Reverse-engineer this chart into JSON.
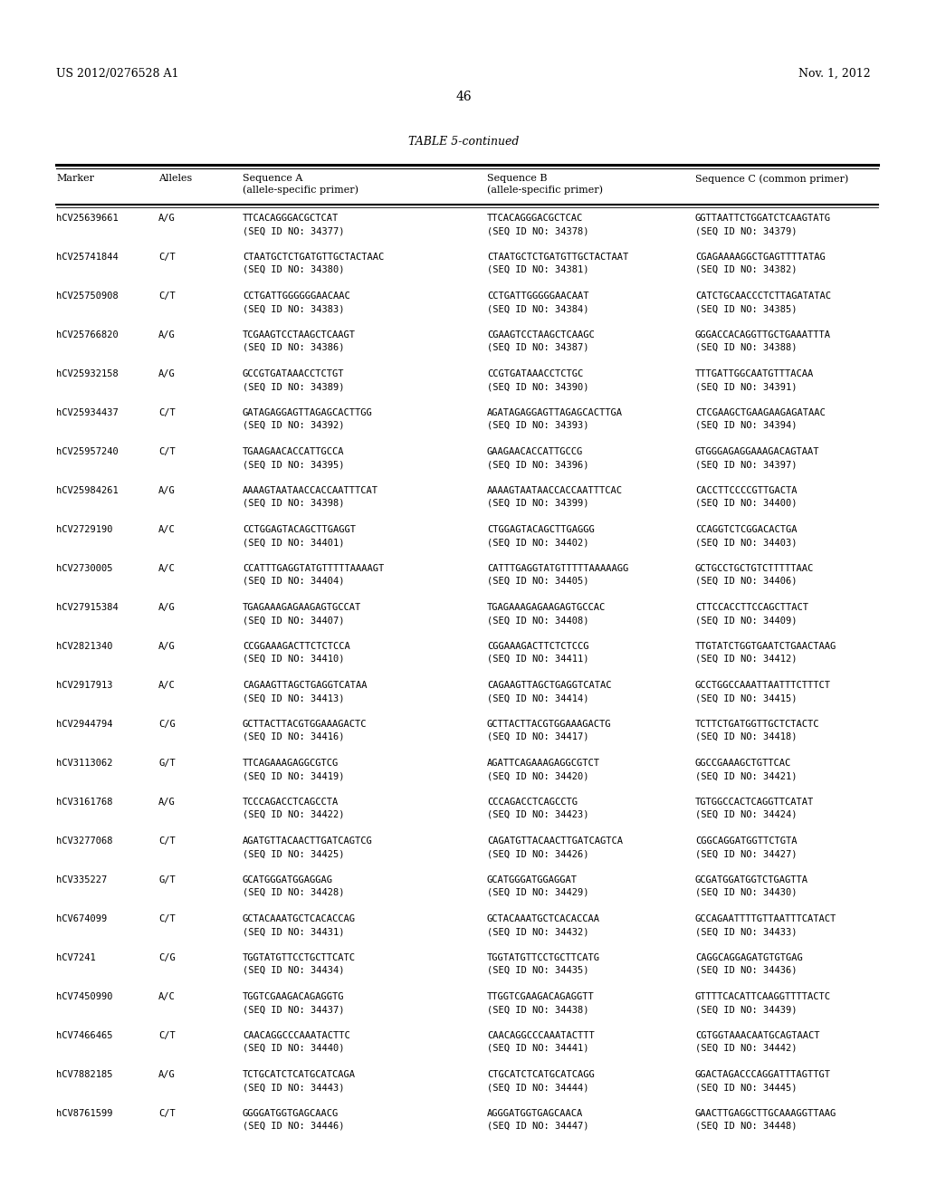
{
  "header_left": "US 2012/0276528 A1",
  "header_right": "Nov. 1, 2012",
  "page_number": "46",
  "table_title": "TABLE 5-continued",
  "rows": [
    [
      "hCV25639661",
      "A/G",
      "TTCACAGGGACGCTCAT",
      "(SEQ ID NO: 34377)",
      "TTCACAGGGACGCTCAC",
      "(SEQ ID NO: 34378)",
      "GGTTAATTCTGGATCTCAAGTATG",
      "(SEQ ID NO: 34379)"
    ],
    [
      "hCV25741844",
      "C/T",
      "CTAATGCTCTGATGTTGCTACTAAC",
      "(SEQ ID NO: 34380)",
      "CTAATGCTCTGATGTTGCTACTAAT",
      "(SEQ ID NO: 34381)",
      "CGAGAAAAGGCTGAGTTTTATAG",
      "(SEQ ID NO: 34382)"
    ],
    [
      "hCV25750908",
      "C/T",
      "CCTGATTGGGGGGAACAAC",
      "(SEQ ID NO: 34383)",
      "CCTGATTGGGGGAACAAT",
      "(SEQ ID NO: 34384)",
      "CATCTGCAACCCTCTTAGATATAC",
      "(SEQ ID NO: 34385)"
    ],
    [
      "hCV25766820",
      "A/G",
      "TCGAAGTCCTAAGCTCAAGT",
      "(SEQ ID NO: 34386)",
      "CGAAGTCCTAAGCTCAAGC",
      "(SEQ ID NO: 34387)",
      "GGGACCACAGGTTGCTGAAATTTA",
      "(SEQ ID NO: 34388)"
    ],
    [
      "hCV25932158",
      "A/G",
      "GCCGTGATAAACCTCTGT",
      "(SEQ ID NO: 34389)",
      "CCGTGATAAACCTCTGC",
      "(SEQ ID NO: 34390)",
      "TTTGATTGGCAATGTTTACAA",
      "(SEQ ID NO: 34391)"
    ],
    [
      "hCV25934437",
      "C/T",
      "GATAGAGGAGTTAGAGCACTTGG",
      "(SEQ ID NO: 34392)",
      "AGATAGAGGAGTTAGAGCACTTGA",
      "(SEQ ID NO: 34393)",
      "CTCGAAGCTGAAGAAGAGATAAC",
      "(SEQ ID NO: 34394)"
    ],
    [
      "hCV25957240",
      "C/T",
      "TGAAGAACACCATTGCCA",
      "(SEQ ID NO: 34395)",
      "GAAGAACACCATTGCCG",
      "(SEQ ID NO: 34396)",
      "GTGGGAGAGGAAAGACAGTAAT",
      "(SEQ ID NO: 34397)"
    ],
    [
      "hCV25984261",
      "A/G",
      "AAAAGTAATAACCACCAATTTCAT",
      "(SEQ ID NO: 34398)",
      "AAAAGTAATAACCACCAATTTCAC",
      "(SEQ ID NO: 34399)",
      "CACCTTCCCCGTTGACTA",
      "(SEQ ID NO: 34400)"
    ],
    [
      "hCV2729190",
      "A/C",
      "CCTGGAGTACAGCTTGAGGT",
      "(SEQ ID NO: 34401)",
      "CTGGAGTACAGCTTGAGGG",
      "(SEQ ID NO: 34402)",
      "CCAGGTCTCGGACACTGA",
      "(SEQ ID NO: 34403)"
    ],
    [
      "hCV2730005",
      "A/C",
      "CCATTTGAGGTATGTTTTTAAAAGT",
      "(SEQ ID NO: 34404)",
      "CATTTGAGGTATGTTTTTAAAAAGG",
      "(SEQ ID NO: 34405)",
      "GCTGCCTGCTGTCTTTTTAAC",
      "(SEQ ID NO: 34406)"
    ],
    [
      "hCV27915384",
      "A/G",
      "TGAGAAAGAGAAGAGTGCCAT",
      "(SEQ ID NO: 34407)",
      "TGAGAAAGAGAAGAGTGCCAC",
      "(SEQ ID NO: 34408)",
      "CTTCCACCTTCCAGCTTACT",
      "(SEQ ID NO: 34409)"
    ],
    [
      "hCV2821340",
      "A/G",
      "CCGGAAAGACTTCTCTCCA",
      "(SEQ ID NO: 34410)",
      "CGGAAAGACTTCTCTCCG",
      "(SEQ ID NO: 34411)",
      "TTGTATCTGGTGAATCTGAACTAAG",
      "(SEQ ID NO: 34412)"
    ],
    [
      "hCV2917913",
      "A/C",
      "CAGAAGTTAGCTGAGGTCATAA",
      "(SEQ ID NO: 34413)",
      "CAGAAGTTAGCTGAGGTCATAC",
      "(SEQ ID NO: 34414)",
      "GCCTGGCCAAATTAATTTCTTTCT",
      "(SEQ ID NO: 34415)"
    ],
    [
      "hCV2944794",
      "C/G",
      "GCTTACTTACGTGGAAAGACTC",
      "(SEQ ID NO: 34416)",
      "GCTTACTTACGTGGAAAGACTG",
      "(SEQ ID NO: 34417)",
      "TCTTCTGATGGTTGCTCTACTC",
      "(SEQ ID NO: 34418)"
    ],
    [
      "hCV3113062",
      "G/T",
      "TTCAGAAAGAGGCGTCG",
      "(SEQ ID NO: 34419)",
      "AGATTCAGAAAGAGGCGTCT",
      "(SEQ ID NO: 34420)",
      "GGCCGAAAGCTGTTCAC",
      "(SEQ ID NO: 34421)"
    ],
    [
      "hCV3161768",
      "A/G",
      "TCCCAGACCTCAGCCTA",
      "(SEQ ID NO: 34422)",
      "CCCAGACCTCAGCCTG",
      "(SEQ ID NO: 34423)",
      "TGTGGCCACTCAGGTTCATAT",
      "(SEQ ID NO: 34424)"
    ],
    [
      "hCV3277068",
      "C/T",
      "AGATGTTACAACTTGATCAGTCG",
      "(SEQ ID NO: 34425)",
      "CAGATGTTACAACTTGATCAGTCA",
      "(SEQ ID NO: 34426)",
      "CGGCAGGATGGTTCTGTA",
      "(SEQ ID NO: 34427)"
    ],
    [
      "hCV335227",
      "G/T",
      "GCATGGGATGGAGGAG",
      "(SEQ ID NO: 34428)",
      "GCATGGGATGGAGGAT",
      "(SEQ ID NO: 34429)",
      "GCGATGGATGGTCTGAGTTA",
      "(SEQ ID NO: 34430)"
    ],
    [
      "hCV674099",
      "C/T",
      "GCTACAAATGCTCACACCAG",
      "(SEQ ID NO: 34431)",
      "GCTACAAATGCTCACACCAA",
      "(SEQ ID NO: 34432)",
      "GCCAGAATTTTGTTAATTTCATACT",
      "(SEQ ID NO: 34433)"
    ],
    [
      "hCV7241",
      "C/G",
      "TGGTATGTTCCTGCTTCATC",
      "(SEQ ID NO: 34434)",
      "TGGTATGTTCCTGCTTCATG",
      "(SEQ ID NO: 34435)",
      "CAGGCAGGAGATGTGTGAG",
      "(SEQ ID NO: 34436)"
    ],
    [
      "hCV7450990",
      "A/C",
      "TGGTCGAAGACAGAGGTG",
      "(SEQ ID NO: 34437)",
      "TTGGTCGAAGACAGAGGTT",
      "(SEQ ID NO: 34438)",
      "GTTTTCACATTCAAGGTTTTACTC",
      "(SEQ ID NO: 34439)"
    ],
    [
      "hCV7466465",
      "C/T",
      "CAACAGGCCCAAATACTTC",
      "(SEQ ID NO: 34440)",
      "CAACAGGCCCAAATACTTT",
      "(SEQ ID NO: 34441)",
      "CGTGGTAAACAATGCAGTAACT",
      "(SEQ ID NO: 34442)"
    ],
    [
      "hCV7882185",
      "A/G",
      "TCTGCATCTCATGCATCAGA",
      "(SEQ ID NO: 34443)",
      "CTGCATCTCATGCATCAGG",
      "(SEQ ID NO: 34444)",
      "GGACTAGACCCAGGATTTAGTTGT",
      "(SEQ ID NO: 34445)"
    ],
    [
      "hCV8761599",
      "C/T",
      "GGGGATGGTGAGCAACG",
      "(SEQ ID NO: 34446)",
      "AGGGATGGTGAGCAACA",
      "(SEQ ID NO: 34447)",
      "GAACTTGAGGCTTGCAAAGGTTAAG",
      "(SEQ ID NO: 34448)"
    ]
  ]
}
